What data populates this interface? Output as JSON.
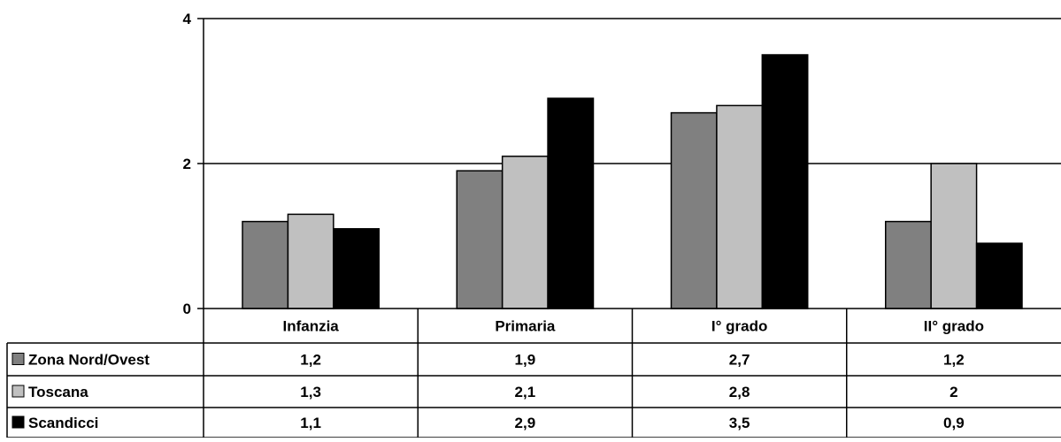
{
  "chart_data": {
    "type": "bar",
    "title": "",
    "xlabel": "",
    "ylabel": "",
    "categories": [
      "Infanzia",
      "Primaria",
      "I° grado",
      "II° grado"
    ],
    "series": [
      {
        "name": "Zona Nord/Ovest",
        "values": [
          1.2,
          1.9,
          2.7,
          1.2
        ],
        "labels": [
          "1,2",
          "1,9",
          "2,7",
          "1,2"
        ],
        "color": "#808080"
      },
      {
        "name": "Toscana",
        "values": [
          1.3,
          2.1,
          2.8,
          2.0
        ],
        "labels": [
          "1,3",
          "2,1",
          "2,8",
          "2"
        ],
        "color": "#c0c0c0"
      },
      {
        "name": "Scandicci",
        "values": [
          1.1,
          2.9,
          3.5,
          0.9
        ],
        "labels": [
          "1,1",
          "2,9",
          "3,5",
          "0,9"
        ],
        "color": "#000000"
      }
    ],
    "ylim": [
      0,
      4
    ],
    "yticks": [
      0,
      2,
      4
    ],
    "ytick_labels": [
      "0",
      "2",
      "4"
    ],
    "grid": true,
    "legend": "data-table-left",
    "data_table": true
  }
}
